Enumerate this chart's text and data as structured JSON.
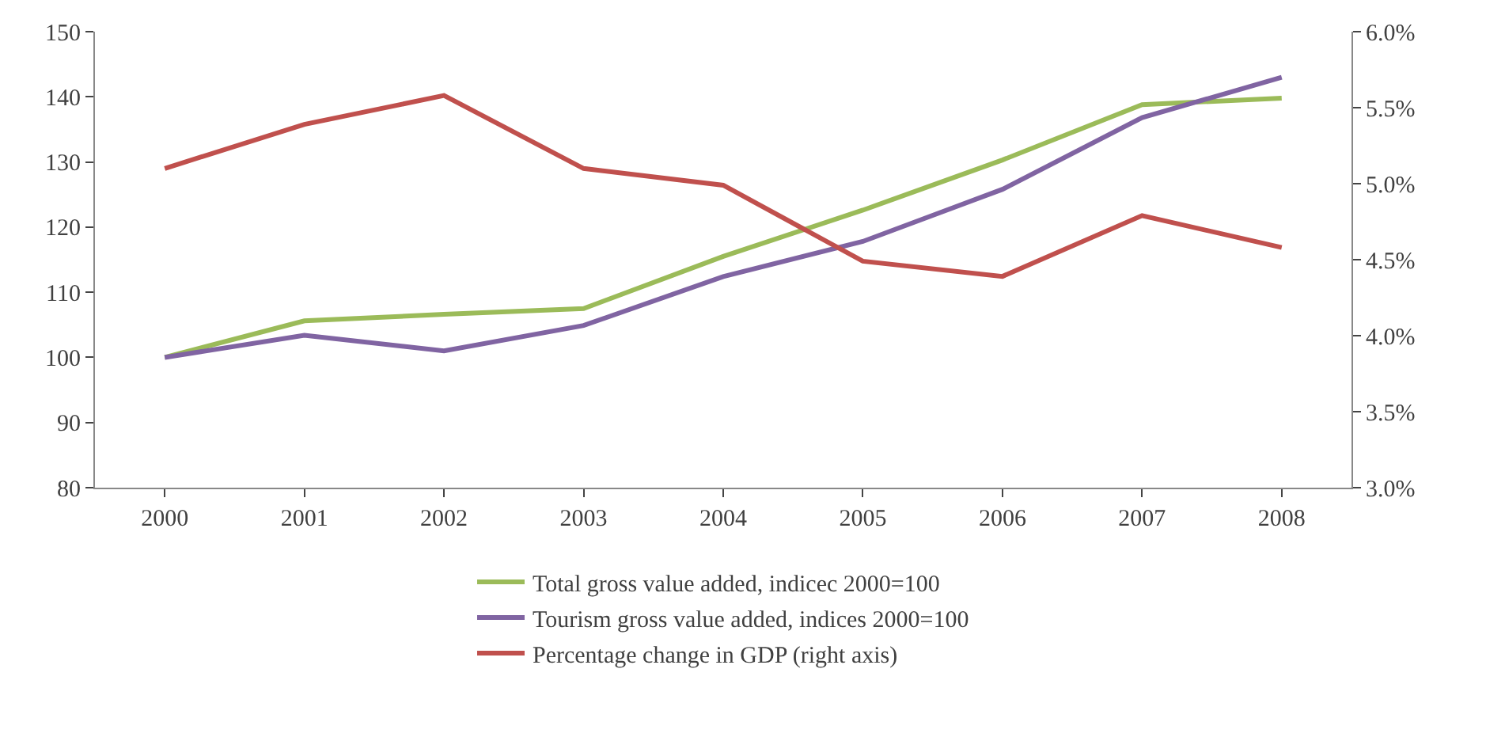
{
  "chart_data": {
    "type": "line",
    "categories": [
      "2000",
      "2001",
      "2002",
      "2003",
      "2004",
      "2005",
      "2006",
      "2007",
      "2008"
    ],
    "series": [
      {
        "name": "Total gross value added, indicec 2000=100",
        "color": "#9bbb59",
        "values": [
          100,
          105.6,
          106.6,
          107.5,
          115.5,
          122.6,
          130.3,
          138.8,
          139.8
        ]
      },
      {
        "name": "Tourism gross value added, indices 2000=100",
        "color": "#8064a2",
        "values": [
          100,
          103.4,
          101,
          104.9,
          112.4,
          117.8,
          125.8,
          136.8,
          143
        ]
      },
      {
        "name": "Percentage change in GDP (right axis)",
        "color": "#c0504d",
        "axis": "y2",
        "values": [
          5.1,
          5.39,
          5.58,
          5.1,
          4.99,
          4.49,
          4.39,
          4.79,
          4.58
        ]
      }
    ],
    "ylim": [
      80,
      150
    ],
    "yticks": [
      80,
      90,
      100,
      110,
      120,
      130,
      140,
      150
    ],
    "y2lim": [
      3.0,
      6.0
    ],
    "y2ticks": [
      {
        "value": 3.0,
        "label": "3.0%"
      },
      {
        "value": 3.5,
        "label": "3.5%"
      },
      {
        "value": 4.0,
        "label": "4.0%"
      },
      {
        "value": 4.5,
        "label": "4.5%"
      },
      {
        "value": 5.0,
        "label": "5.0%"
      },
      {
        "value": 5.5,
        "label": "5.5%"
      },
      {
        "value": 6.0,
        "label": "6.0%"
      }
    ],
    "grid": false,
    "legend": "bottom",
    "marker": "none",
    "line_style": "solid"
  }
}
